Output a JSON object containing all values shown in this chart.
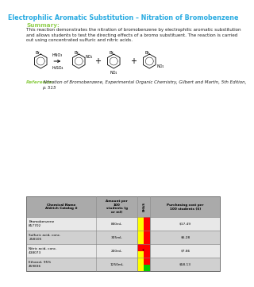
{
  "title": "Electrophilic Aromatic Substitution – Nitration of Bromobenzene",
  "title_color": "#29ABE2",
  "summary_label": "Summary:",
  "summary_color": "#92D050",
  "summary_text": "This reaction demonstrates the nitration of bromobenzene by electrophilic aromatic substitution\nand allows students to test the directing effects of a bromo substituent. The reaction is carried\nout using concentrated sulfuric and nitric acids.",
  "reference_label": "Reference:",
  "reference_color": "#92D050",
  "reference_text": " Nitration of Bromobenzene, Experimental Organic Chemistry, Gilbert and Martin, 5th Edition,\np. 515",
  "table_headers": [
    "Chemical Name\nAldrich Catalog #",
    "Amount per\n100\nstudents (g\nor ml)",
    "EH&S",
    "Purchasing cost per\n100 students ($)"
  ],
  "table_rows": [
    [
      "Bromobenzene\n857702",
      "800mL",
      [
        [
          "#FFFF00",
          "#FF0000"
        ],
        [
          "#FFFF00",
          "#FF0000"
        ]
      ],
      "$17.49"
    ],
    [
      "Sulfuric acid, conc.\n258105",
      "305mL",
      [
        [
          "#FFFF00",
          "#FF0000"
        ],
        [
          "#FFFF00",
          "#FF0000"
        ]
      ],
      "$6.28"
    ],
    [
      "Nitric acid, conc.\n438073",
      "200mL",
      [
        [
          "#FF0000",
          "#FF0000"
        ],
        [
          "#FFFF00",
          "#FF0000"
        ]
      ],
      "$7.86"
    ],
    [
      "Ethanol, 95%\n459836",
      "1250mL",
      [
        [
          "#FFFF00",
          "#FF0000"
        ],
        [
          "#FFFF00",
          "#00CC00"
        ]
      ],
      "$58.13"
    ]
  ],
  "bg_color": "#ffffff",
  "header_bg": "#aaaaaa",
  "row_bg": [
    "#e8e8e8",
    "#d0d0d0",
    "#e8e8e8",
    "#d0d0d0"
  ]
}
